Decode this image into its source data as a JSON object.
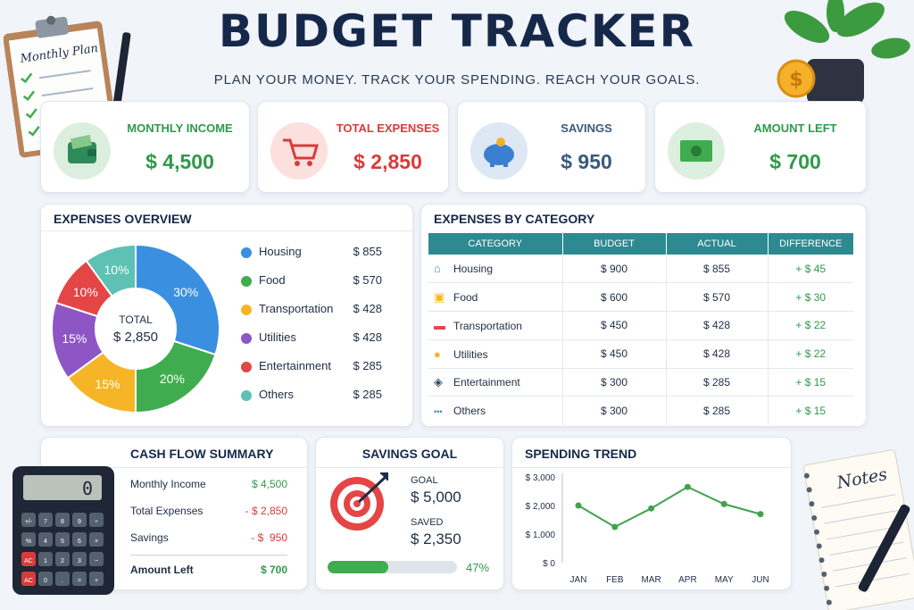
{
  "header": {
    "title": "BUDGET TRACKER",
    "subtitle": "PLAN YOUR MONEY. TRACK YOUR SPENDING. REACH YOUR GOALS."
  },
  "decor": {
    "clipboard_label": "Monthly Plan",
    "notepad_label": "Notes",
    "calculator_display": "0",
    "calculator_keys": [
      "+/-",
      "7",
      "8",
      "9",
      "÷",
      "%",
      "4",
      "5",
      "6",
      "×",
      "AC",
      "1",
      "2",
      "3",
      "−",
      "AC",
      "0",
      ".",
      "=",
      "+"
    ]
  },
  "kpis": [
    {
      "label": "MONTHLY INCOME",
      "value": "$ 4,500",
      "color": "#2e9a4a",
      "bg": "#dcefdf",
      "icon": "wallet-icon"
    },
    {
      "label": "TOTAL EXPENSES",
      "value": "$ 2,850",
      "color": "#d93b3b",
      "bg": "#fbe0de",
      "icon": "shopping-cart-icon"
    },
    {
      "label": "SAVINGS",
      "value": "$ 950",
      "color": "#3b5a7a",
      "bg": "#dde8f4",
      "icon": "piggy-bank-icon"
    },
    {
      "label": "AMOUNT LEFT",
      "value": "$ 700",
      "color": "#2e9a4a",
      "bg": "#ddf0e0",
      "icon": "money-bill-icon"
    }
  ],
  "overview": {
    "title": "EXPENSES OVERVIEW",
    "center_label": "TOTAL",
    "center_value": "$ 2,850",
    "slices": [
      {
        "name": "Housing",
        "value": "$ 855",
        "pct": 30,
        "pct_label": "30%",
        "color": "#3a8fe0"
      },
      {
        "name": "Food",
        "value": "$ 570",
        "pct": 20,
        "pct_label": "20%",
        "color": "#3fad4f"
      },
      {
        "name": "Transportation",
        "value": "$ 428",
        "pct": 15,
        "pct_label": "15%",
        "color": "#f6b526"
      },
      {
        "name": "Utilities",
        "value": "$ 428",
        "pct": 15,
        "pct_label": "15%",
        "color": "#8e55c4"
      },
      {
        "name": "Entertainment",
        "value": "$ 285",
        "pct": 10,
        "pct_label": "10%",
        "color": "#e44545"
      },
      {
        "name": "Others",
        "value": "$ 285",
        "pct": 10,
        "pct_label": "10%",
        "color": "#5dc1b3"
      }
    ]
  },
  "category": {
    "title": "EXPENSES BY CATEGORY",
    "headers": [
      "CATEGORY",
      "BUDGET",
      "ACTUAL",
      "DIFFERENCE"
    ],
    "rows": [
      {
        "icon": "house-icon",
        "glyph": "⌂",
        "color": "#3a8fe0",
        "name": "Housing",
        "budget": "$ 900",
        "actual": "$ 855",
        "diff": "+ $ 45"
      },
      {
        "icon": "food-icon",
        "glyph": "▣",
        "color": "#f6b526",
        "name": "Food",
        "budget": "$ 600",
        "actual": "$ 570",
        "diff": "+ $ 30"
      },
      {
        "icon": "car-icon",
        "glyph": "▬",
        "color": "#e44545",
        "name": "Transportation",
        "budget": "$ 450",
        "actual": "$ 428",
        "diff": "+ $ 22"
      },
      {
        "icon": "lightbulb-icon",
        "glyph": "●",
        "color": "#f6b526",
        "name": "Utilities",
        "budget": "$ 450",
        "actual": "$ 428",
        "diff": "+ $ 22"
      },
      {
        "icon": "gamepad-icon",
        "glyph": "◈",
        "color": "#34496a",
        "name": "Entertainment",
        "budget": "$ 300",
        "actual": "$ 285",
        "diff": "+ $ 15"
      },
      {
        "icon": "dots-icon",
        "glyph": "•••",
        "color": "#2e8a91",
        "name": "Others",
        "budget": "$ 300",
        "actual": "$ 285",
        "diff": "+ $ 15"
      }
    ]
  },
  "cashflow": {
    "title": "CASH FLOW SUMMARY",
    "rows": [
      {
        "label": "Monthly Income",
        "value": "$ 4,500",
        "color": "#2e9a4a"
      },
      {
        "label": "Total Expenses",
        "value": "- $ 2,850",
        "color": "#d93b3b"
      },
      {
        "label": "Savings",
        "value": "- $  950",
        "color": "#d93b3b"
      }
    ],
    "total": {
      "label": "Amount Left",
      "value": "$ 700",
      "color": "#2e9a4a"
    }
  },
  "savings_goal": {
    "title": "SAVINGS GOAL",
    "goal_label": "GOAL",
    "goal_value": "$ 5,000",
    "saved_label": "SAVED",
    "saved_value": "$ 2,350",
    "progress": 0.47,
    "progress_label": "47%"
  },
  "chart_data": {
    "type": "line",
    "title": "SPENDING TREND",
    "categories": [
      "JAN",
      "FEB",
      "MAR",
      "APR",
      "MAY",
      "JUN"
    ],
    "values": [
      2000,
      1250,
      1900,
      2650,
      2050,
      1700
    ],
    "ylim": [
      0,
      3000
    ],
    "yticks": [
      0,
      1000,
      2000,
      3000
    ],
    "ytick_labels": [
      "$ 0",
      "$ 1,000",
      "$ 2,000",
      "$ 3,000"
    ],
    "color": "#3fa34d",
    "grid": false
  }
}
